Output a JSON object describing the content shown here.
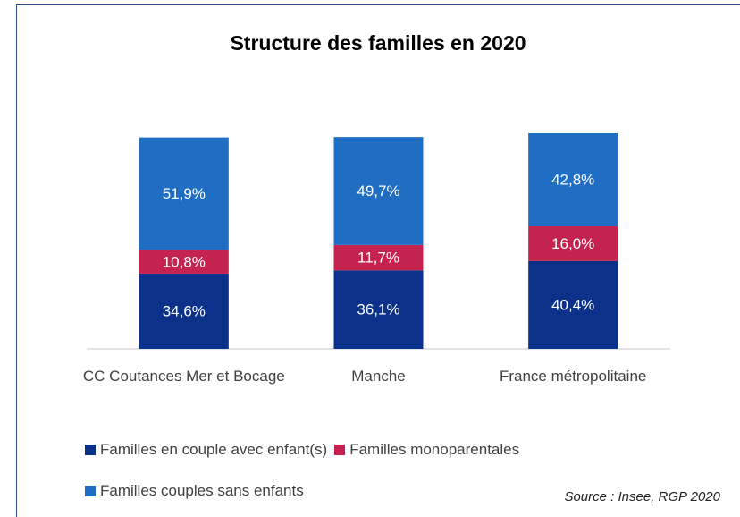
{
  "chart_data": {
    "type": "stacked_bar",
    "title": "Structure des familles en 2020",
    "categories": [
      "CC Coutances Mer et Bocage",
      "Manche",
      "France métropolitaine"
    ],
    "series": [
      {
        "name": "Familles en couple avec enfant(s)",
        "color": "#0b318b",
        "values": [
          34.6,
          36.1,
          40.4
        ],
        "value_labels": [
          "34,6%",
          "36,1%",
          "40,4%"
        ]
      },
      {
        "name": "Familles monoparentales",
        "color": "#c5234f",
        "values": [
          10.8,
          11.7,
          16.0
        ],
        "value_labels": [
          "10,8%",
          "11,7%",
          "16,0%"
        ]
      },
      {
        "name": "Familles couples sans enfants",
        "color": "#1f6ec3",
        "values": [
          51.9,
          49.7,
          42.8
        ],
        "value_labels": [
          "51,9%",
          "49,7%",
          "42,8%"
        ]
      }
    ],
    "annotation": "Source : Insee, RGP 2020"
  }
}
